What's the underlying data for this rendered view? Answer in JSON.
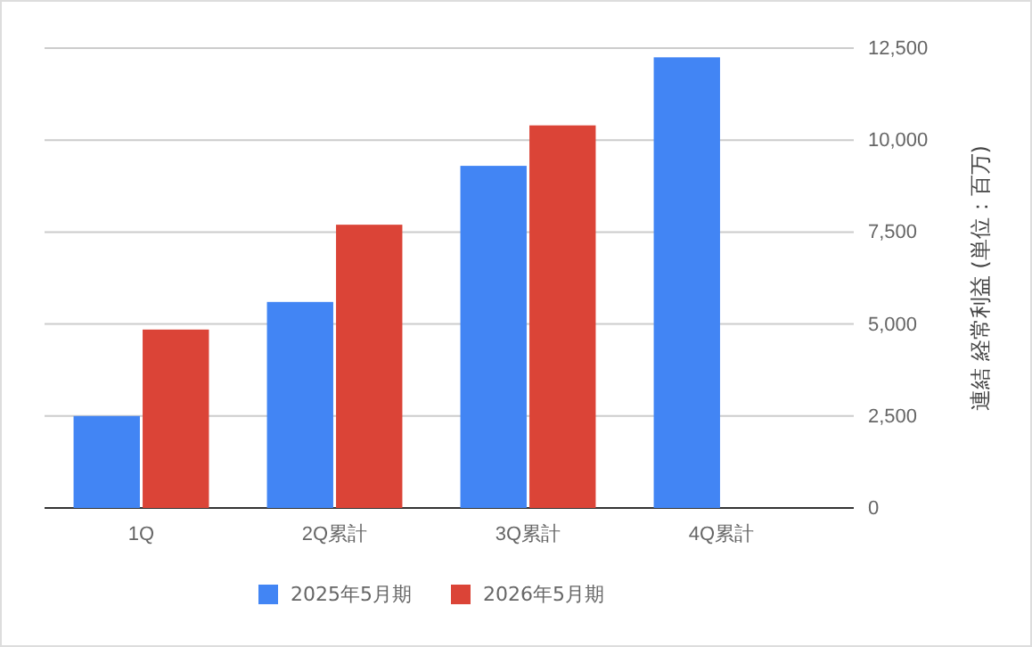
{
  "chart_data": {
    "type": "bar",
    "categories": [
      "1Q",
      "2Q累計",
      "3Q累計",
      "4Q累計"
    ],
    "series": [
      {
        "name": "2025年5月期",
        "color": "#4285f4",
        "values": [
          2500,
          5600,
          9300,
          12250
        ]
      },
      {
        "name": "2026年5月期",
        "color": "#db4437",
        "values": [
          4850,
          7700,
          10400,
          null
        ]
      }
    ],
    "ylabel": "連結 経常利益 (単位：百万)",
    "ylim": [
      0,
      12500
    ],
    "yticks": [
      {
        "value": 0,
        "label": "0"
      },
      {
        "value": 2500,
        "label": "2,500"
      },
      {
        "value": 5000,
        "label": "5,000"
      },
      {
        "value": 7500,
        "label": "7,500"
      },
      {
        "value": 10000,
        "label": "10,000"
      },
      {
        "value": 12500,
        "label": "12,500"
      }
    ],
    "grid": "y",
    "legend": "bottom"
  }
}
